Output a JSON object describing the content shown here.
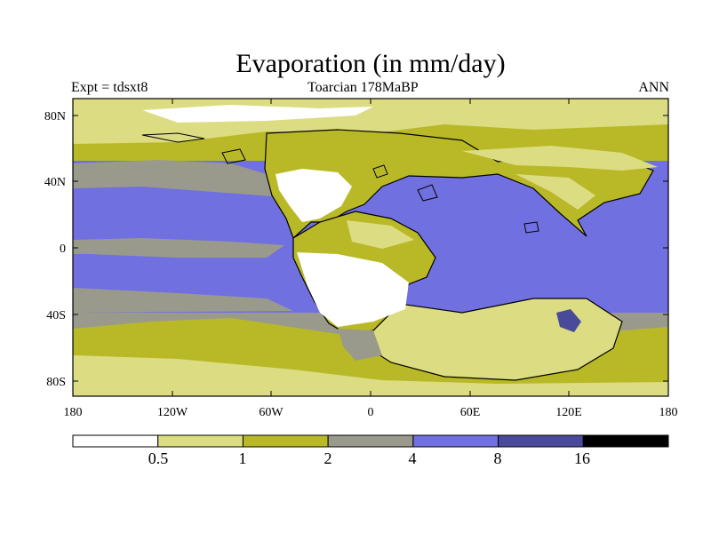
{
  "title": "Evaporation (in mm/day)",
  "left_label": "Expt = tdsxt8",
  "center_label": "Toarcian 178MaBP",
  "right_label": "ANN",
  "y_ticks": [
    "80N",
    "40N",
    "0",
    "40S",
    "80S"
  ],
  "x_ticks": [
    "180",
    "120W",
    "60W",
    "0",
    "60E",
    "120E",
    "180"
  ],
  "legend": {
    "colors": [
      "#ffffff",
      "#dcdc82",
      "#b9b928",
      "#9a9a8c",
      "#7070e0",
      "#4a4a9a",
      "#000000"
    ],
    "labels": [
      "0.5",
      "1",
      "2",
      "4",
      "8",
      "16"
    ]
  }
}
